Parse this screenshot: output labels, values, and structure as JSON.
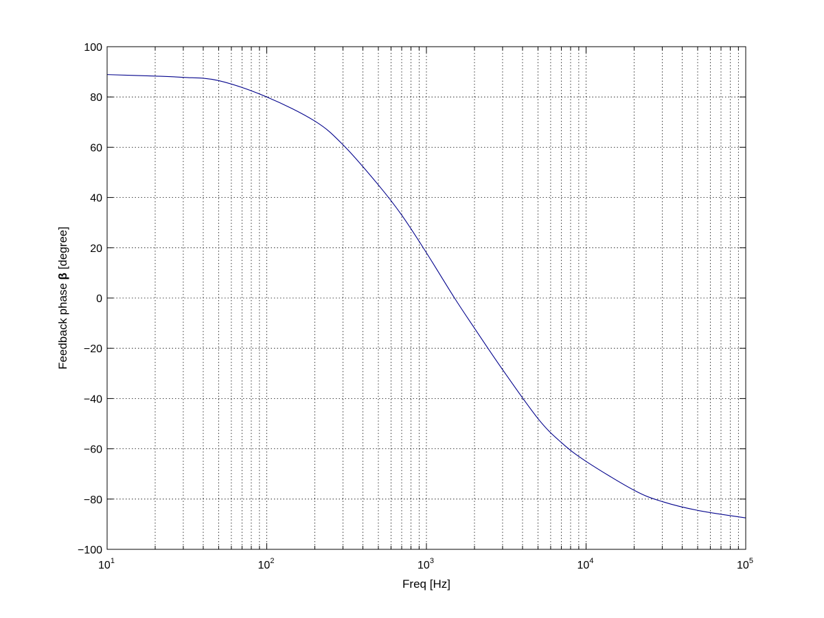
{
  "chart_data": {
    "type": "line",
    "title": "",
    "xlabel": "Freq [Hz]",
    "ylabel_prefix": "Feedback phase ",
    "ylabel_symbol": "β",
    "ylabel_suffix": " [degree]",
    "xscale": "log",
    "xlim": [
      10,
      100000
    ],
    "ylim": [
      -100,
      100
    ],
    "grid": true,
    "legend": "none",
    "x_ticks": [
      {
        "base": "10",
        "exp": "1",
        "value": 10
      },
      {
        "base": "10",
        "exp": "2",
        "value": 100
      },
      {
        "base": "10",
        "exp": "3",
        "value": 1000
      },
      {
        "base": "10",
        "exp": "4",
        "value": 10000
      },
      {
        "base": "10",
        "exp": "5",
        "value": 100000
      }
    ],
    "y_ticks": [
      "100",
      "80",
      "60",
      "40",
      "20",
      "0",
      "−20",
      "−40",
      "−60",
      "−80",
      "−100"
    ],
    "series": [
      {
        "color": "#00008b",
        "x": [
          10,
          20,
          30,
          50,
          100,
          200,
          300,
          500,
          700,
          1000,
          1500,
          2000,
          3000,
          5000,
          7000,
          10000,
          20000,
          30000,
          50000,
          100000
        ],
        "y": [
          88.9,
          88.3,
          87.8,
          86.5,
          80.0,
          70.4,
          61.0,
          45.0,
          33.0,
          18.0,
          0.0,
          -12.0,
          -28.5,
          -48.0,
          -57.5,
          -65.0,
          -76.5,
          -81.0,
          -84.5,
          -87.5
        ]
      }
    ]
  }
}
